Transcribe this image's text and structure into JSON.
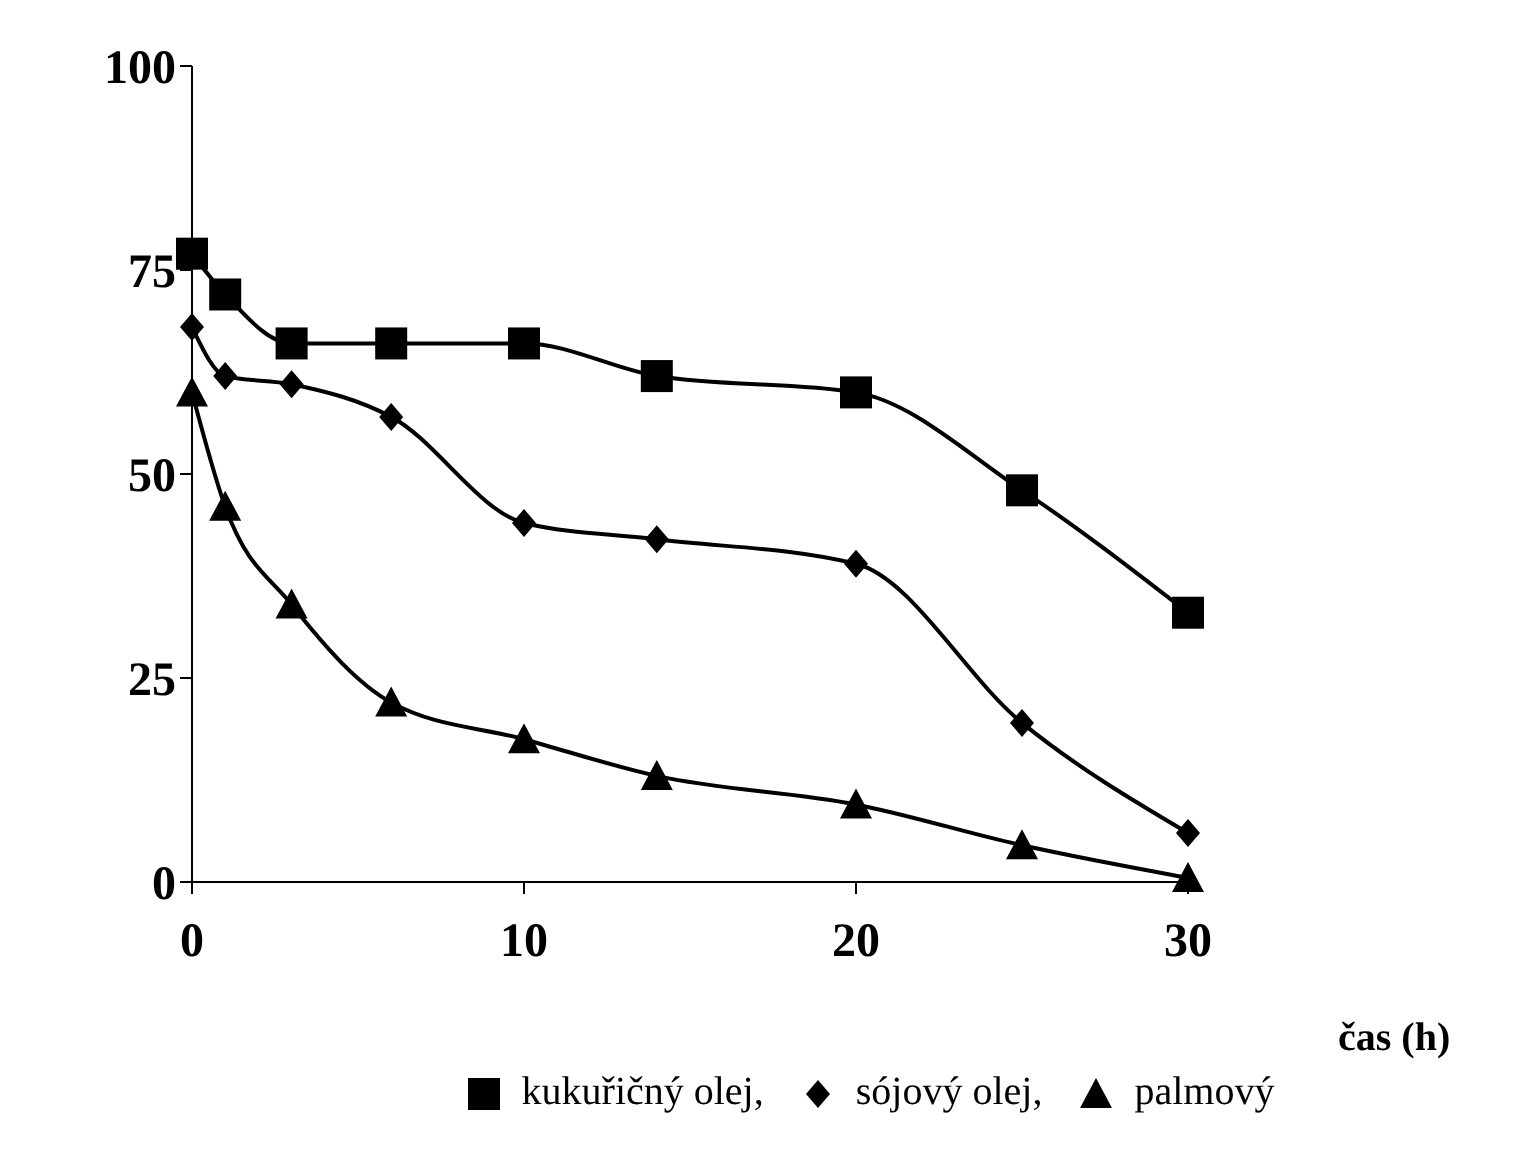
{
  "chart_data": {
    "type": "line",
    "xlabel": "čas (h)",
    "x": [
      0,
      1,
      3,
      6,
      10,
      14,
      20,
      25,
      30
    ],
    "xlim": [
      0,
      30
    ],
    "xticks": [
      0,
      10,
      20,
      30
    ],
    "ylim": [
      0,
      100
    ],
    "yticks": [
      0,
      25,
      50,
      75,
      100
    ],
    "grid": false,
    "legend": "bottom",
    "series": [
      {
        "name": "kukuřičný olej,",
        "color": "#000000",
        "marker": "square",
        "values": [
          77,
          72,
          66,
          66,
          66,
          62,
          60,
          48,
          33
        ]
      },
      {
        "name": "sójový olej,",
        "color": "#000000",
        "marker": "diamond",
        "values": [
          68,
          62,
          61,
          57,
          44,
          42,
          39,
          19.5,
          6
        ]
      },
      {
        "name": "palmový",
        "color": "#000000",
        "marker": "triangle",
        "values": [
          60,
          46,
          34,
          22,
          17.5,
          13,
          9.5,
          4.5,
          0.5
        ]
      }
    ]
  }
}
